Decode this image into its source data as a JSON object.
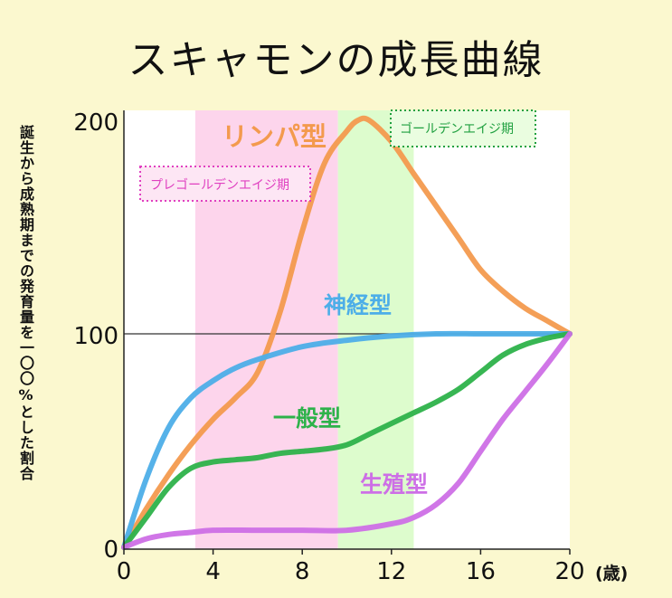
{
  "title": "スキャモンの成長曲線",
  "chart_data": {
    "type": "line",
    "title": "スキャモンの成長曲線",
    "xlabel": "(歳)",
    "ylabel": "誕生から成熟期までの発育量を一〇〇%とした割合",
    "xlim": [
      0,
      20
    ],
    "ylim": [
      0,
      200
    ],
    "xticks": [
      0,
      4,
      8,
      12,
      16,
      20
    ],
    "yticks": [
      0,
      100,
      200
    ],
    "reference_line": 100,
    "periods": [
      {
        "name": "プレゴールデンエイジ期",
        "start": 3.2,
        "end": 9.6,
        "color": "#fdd5ec",
        "label_color": "#e040c0"
      },
      {
        "name": "ゴールデンエイジ期",
        "start": 9.6,
        "end": 13.0,
        "color": "#ddfccd",
        "label_color": "#20a040"
      }
    ],
    "series": [
      {
        "name": "リンパ型",
        "color": "#f39a4e",
        "x": [
          0,
          1,
          2,
          3,
          4,
          5,
          6,
          7,
          8,
          9,
          10,
          10.5,
          11,
          12,
          13,
          14,
          15,
          16,
          17,
          18,
          19,
          20
        ],
        "values": [
          0,
          18,
          34,
          48,
          60,
          70,
          82,
          110,
          148,
          180,
          195,
          200,
          200,
          190,
          175,
          160,
          145,
          130,
          120,
          112,
          106,
          100
        ]
      },
      {
        "name": "神経型",
        "color": "#4daee8",
        "x": [
          0,
          1,
          2,
          3,
          4,
          5,
          6,
          8,
          10,
          12,
          14,
          16,
          18,
          20
        ],
        "values": [
          0,
          32,
          56,
          70,
          78,
          84,
          88,
          94,
          97,
          99,
          100,
          100,
          100,
          100
        ]
      },
      {
        "name": "一般型",
        "color": "#2db24a",
        "x": [
          0,
          1,
          2,
          3,
          4,
          5,
          6,
          7,
          8,
          9,
          10,
          11,
          12,
          13,
          14,
          15,
          16,
          17,
          18,
          19,
          20
        ],
        "values": [
          0,
          14,
          28,
          37,
          40,
          41,
          42,
          44,
          45,
          46,
          48,
          53,
          58,
          63,
          68,
          74,
          82,
          90,
          95,
          98,
          100
        ]
      },
      {
        "name": "生殖型",
        "color": "#cd6fe6",
        "x": [
          0,
          1,
          2,
          3,
          4,
          6,
          8,
          10,
          12,
          13,
          14,
          15,
          16,
          17,
          18,
          19,
          20
        ],
        "values": [
          0,
          4,
          6,
          7,
          8,
          8,
          8,
          8,
          11,
          14,
          20,
          30,
          45,
          60,
          73,
          86,
          100
        ]
      }
    ],
    "labels": {
      "リンパ型": "リンパ型",
      "神経型": "神経型",
      "一般型": "一般型",
      "生殖型": "生殖型"
    }
  }
}
